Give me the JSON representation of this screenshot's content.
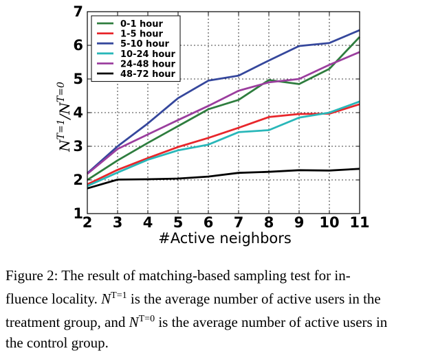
{
  "chart_data": {
    "type": "line",
    "title": "",
    "xlabel": "#Active neighbors",
    "ylabel_base": "N",
    "ylabel_num_sup": "T=1",
    "ylabel_sep": "/",
    "ylabel_den_sup": "T=0",
    "x": [
      2,
      3,
      4,
      5,
      6,
      7,
      8,
      9,
      10,
      11
    ],
    "xlim": [
      2,
      11
    ],
    "ylim": [
      1,
      7
    ],
    "yticks": [
      1,
      2,
      3,
      4,
      5,
      6,
      7
    ],
    "grid": true,
    "legend_position": "top-left",
    "series": [
      {
        "name": "0-1 hour",
        "color": "#2e7d3e",
        "values": [
          2.0,
          2.58,
          3.1,
          3.6,
          4.1,
          4.38,
          4.97,
          4.85,
          5.3,
          6.25
        ]
      },
      {
        "name": "1-5 hour",
        "color": "#e8262b",
        "values": [
          1.87,
          2.3,
          2.65,
          2.98,
          3.25,
          3.55,
          3.87,
          3.96,
          3.97,
          4.25
        ]
      },
      {
        "name": "5-10 hour",
        "color": "#35479c",
        "values": [
          2.2,
          3.0,
          3.68,
          4.43,
          4.95,
          5.1,
          5.55,
          5.98,
          6.07,
          6.45
        ]
      },
      {
        "name": "10-24 hour",
        "color": "#29b7b9",
        "values": [
          1.82,
          2.22,
          2.6,
          2.88,
          3.05,
          3.42,
          3.48,
          3.85,
          4.0,
          4.33
        ]
      },
      {
        "name": "24-48 hour",
        "color": "#9b3e9e",
        "values": [
          2.18,
          2.92,
          3.35,
          3.78,
          4.2,
          4.65,
          4.9,
          5.0,
          5.42,
          5.8
        ]
      },
      {
        "name": "48-72 hour",
        "color": "#000000",
        "values": [
          1.75,
          2.01,
          2.02,
          2.04,
          2.1,
          2.21,
          2.24,
          2.29,
          2.28,
          2.33
        ]
      }
    ]
  },
  "caption": {
    "line1": "Figure 2:  The result of matching-based sampling test for in-",
    "line2_a": "fluence locality. ",
    "line2_base": "N",
    "line2_sup": "T=1",
    "line2_b": " is the average number of active users in the",
    "line3_a": "treatment group, and ",
    "line3_base": "N",
    "line3_sup": "T=0",
    "line3_b": " is the average number of active users in",
    "line4": "the control group."
  }
}
